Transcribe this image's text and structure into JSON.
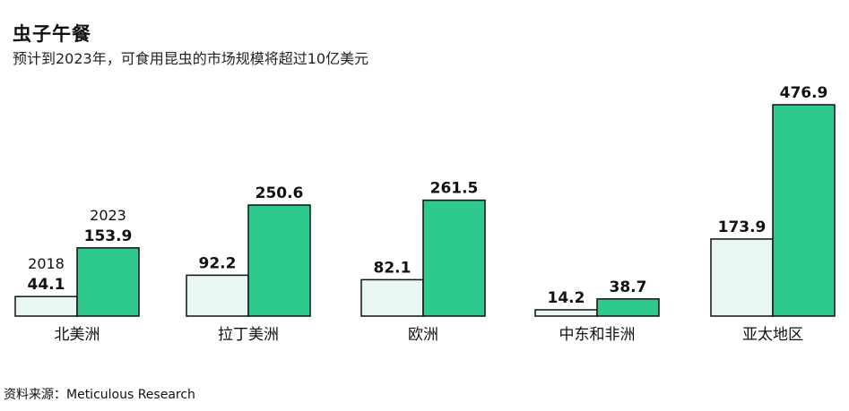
{
  "header": {
    "title": "虫子午餐",
    "subtitle": "预计到2023年，可食用昆虫的市场规模将超过10亿美元"
  },
  "footer": {
    "source": "资料来源：Meticulous Research"
  },
  "colors": {
    "series_2018": "#e8f7ef",
    "series_2023": "#2ec98c",
    "stroke": "#111111"
  },
  "chart_data": {
    "type": "bar",
    "categories": [
      "北美洲",
      "拉丁美洲",
      "欧洲",
      "中东和非洲",
      "亚太地区"
    ],
    "series": [
      {
        "name": "2018",
        "values": [
          44.1,
          92.2,
          82.1,
          14.2,
          173.9
        ],
        "labels": [
          "44.1",
          "92.2",
          "82.1",
          "14.2",
          "173.9"
        ]
      },
      {
        "name": "2023",
        "values": [
          153.9,
          250.6,
          261.5,
          38.7,
          476.9
        ],
        "labels": [
          "153.9",
          "250.6",
          "261.5",
          "38.7",
          "476.9"
        ]
      }
    ],
    "title": "虫子午餐",
    "xlabel": "",
    "ylabel": "",
    "ylim": [
      0,
      476.9
    ],
    "grid": false,
    "legend": "inline labels above first group"
  }
}
